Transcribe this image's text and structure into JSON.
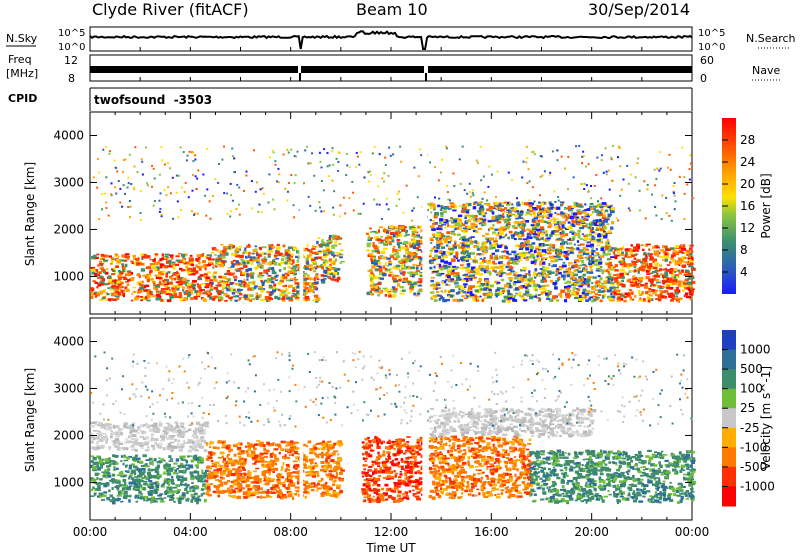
{
  "header": {
    "station": "Clyde River (fitACF)",
    "beam": "Beam 10",
    "date": "30/Sep/2014"
  },
  "strip_labels": {
    "nsky": "N.Sky",
    "nsky_ticks": [
      "10^5",
      "10^0"
    ],
    "nsearch": "N.Search",
    "nsearch_ticks": [
      "10^5",
      "10^0"
    ],
    "freq_top": "Freq",
    "freq_unit": "[MHz]",
    "freq_ticks": [
      "12",
      "8"
    ],
    "nave": "Nave",
    "nave_ticks": [
      "60",
      "0"
    ],
    "cpid": "CPID",
    "cpid_value": "twofsound  -3503"
  },
  "chart_data": [
    {
      "type": "heatmap",
      "name": "power",
      "ylabel": "Slant Range [km]",
      "xlabel": "",
      "xlim": [
        0,
        24
      ],
      "ylim": [
        200,
        4500
      ],
      "x_ticks": [
        "00:00",
        "04:00",
        "08:00",
        "12:00",
        "16:00",
        "20:00",
        "00:00"
      ],
      "y_ticks": [
        "1000",
        "2000",
        "3000",
        "4000"
      ],
      "colorbar": {
        "label": "Power [dB]",
        "ticks": [
          "4",
          "8",
          "12",
          "16",
          "20",
          "24",
          "28"
        ],
        "colors": [
          "#1a1aff",
          "#2a5dbb",
          "#3d8f6f",
          "#8cc63e",
          "#ffe000",
          "#ffa500",
          "#ff6a00",
          "#ff2a00",
          "#ff0000"
        ]
      },
      "bands": [
        {
          "x0": 0.0,
          "x1": 4.8,
          "r0": 500,
          "r1": 1500,
          "level": "high"
        },
        {
          "x0": 4.8,
          "x1": 9.0,
          "r0": 500,
          "r1": 1700,
          "level": "medium"
        },
        {
          "x0": 9.0,
          "x1": 10.0,
          "r0": 900,
          "r1": 1900,
          "level": "medium"
        },
        {
          "x0": 11.0,
          "x1": 13.2,
          "r0": 600,
          "r1": 2100,
          "level": "medium"
        },
        {
          "x0": 13.5,
          "x1": 20.8,
          "r0": 500,
          "r1": 2600,
          "level": "low"
        },
        {
          "x0": 20.8,
          "x1": 24.0,
          "r0": 500,
          "r1": 1700,
          "level": "high"
        }
      ]
    },
    {
      "type": "heatmap",
      "name": "velocity",
      "ylabel": "Slant Range [km]",
      "xlabel": "Time UT",
      "xlim": [
        0,
        24
      ],
      "ylim": [
        200,
        4500
      ],
      "x_ticks": [
        "00:00",
        "04:00",
        "08:00",
        "12:00",
        "16:00",
        "20:00",
        "00:00"
      ],
      "y_ticks": [
        "1000",
        "2000",
        "3000",
        "4000"
      ],
      "colorbar": {
        "label": "Velocity [m s^-1]",
        "ticks": [
          "1000",
          "500",
          "100",
          "25",
          "-25",
          "-100",
          "-500",
          "-1000"
        ],
        "colors": [
          "#1e3fbf",
          "#2d6f99",
          "#3d8c6c",
          "#6fbe3a",
          "#c8c8c8",
          "#ffae00",
          "#ff7a00",
          "#ff3000",
          "#ff0000"
        ]
      },
      "bands": [
        {
          "x0": 0.0,
          "x1": 4.6,
          "r0": 600,
          "r1": 1600,
          "vel": "positive"
        },
        {
          "x0": 0.0,
          "x1": 4.6,
          "r0": 1700,
          "r1": 2300,
          "vel": "near-zero"
        },
        {
          "x0": 4.6,
          "x1": 10.0,
          "r0": 700,
          "r1": 1900,
          "vel": "negative"
        },
        {
          "x0": 10.8,
          "x1": 13.2,
          "r0": 600,
          "r1": 2000,
          "vel": "strong-negative"
        },
        {
          "x0": 13.5,
          "x1": 17.5,
          "r0": 700,
          "r1": 2000,
          "vel": "negative"
        },
        {
          "x0": 13.5,
          "x1": 20.0,
          "r0": 2000,
          "r1": 2600,
          "vel": "near-zero"
        },
        {
          "x0": 17.5,
          "x1": 24.0,
          "r0": 600,
          "r1": 1700,
          "vel": "positive"
        }
      ]
    }
  ]
}
